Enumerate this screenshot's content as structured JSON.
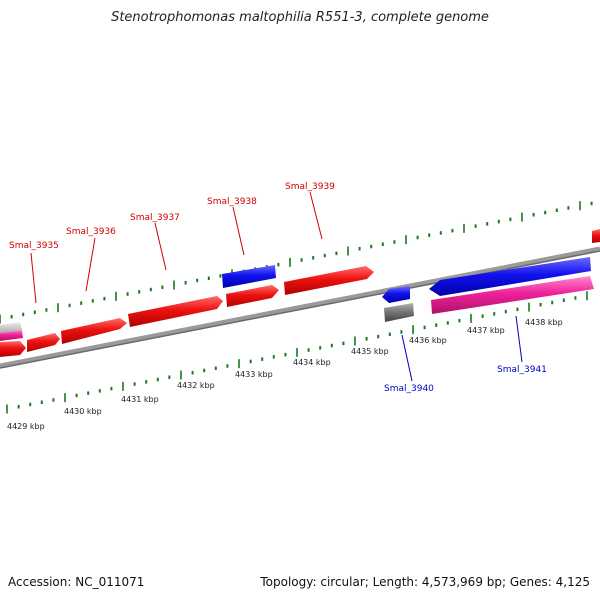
{
  "title": "Stenotrophomonas maltophilia R551-3, complete genome",
  "footer": {
    "accession": "Accession: NC_011071",
    "topology": "Topology: circular; Length: 4,573,969 bp; Genes: 4,125"
  },
  "colors": {
    "forward_gene": "#ee1111",
    "reverse_gene": "#1111ee",
    "rna_or_pseudo": "#ee2299",
    "other_feature": "#777777",
    "tick": "#1a7a1a",
    "backbone": "#8a8a8a"
  },
  "scale_labels": [
    "4429 kbp",
    "4430 kbp",
    "4431 kbp",
    "4432 kbp",
    "4433 kbp",
    "4434 kbp",
    "4435 kbp",
    "4436 kbp",
    "4437 kbp",
    "4438 kbp"
  ],
  "gene_labels": [
    {
      "name": "Smal_3935",
      "strand": "forward"
    },
    {
      "name": "Smal_3936",
      "strand": "forward"
    },
    {
      "name": "Smal_3937",
      "strand": "forward"
    },
    {
      "name": "Smal_3938",
      "strand": "forward"
    },
    {
      "name": "Smal_3939",
      "strand": "forward"
    },
    {
      "name": "Smal_3940",
      "strand": "reverse"
    },
    {
      "name": "Smal_3941",
      "strand": "reverse"
    }
  ]
}
